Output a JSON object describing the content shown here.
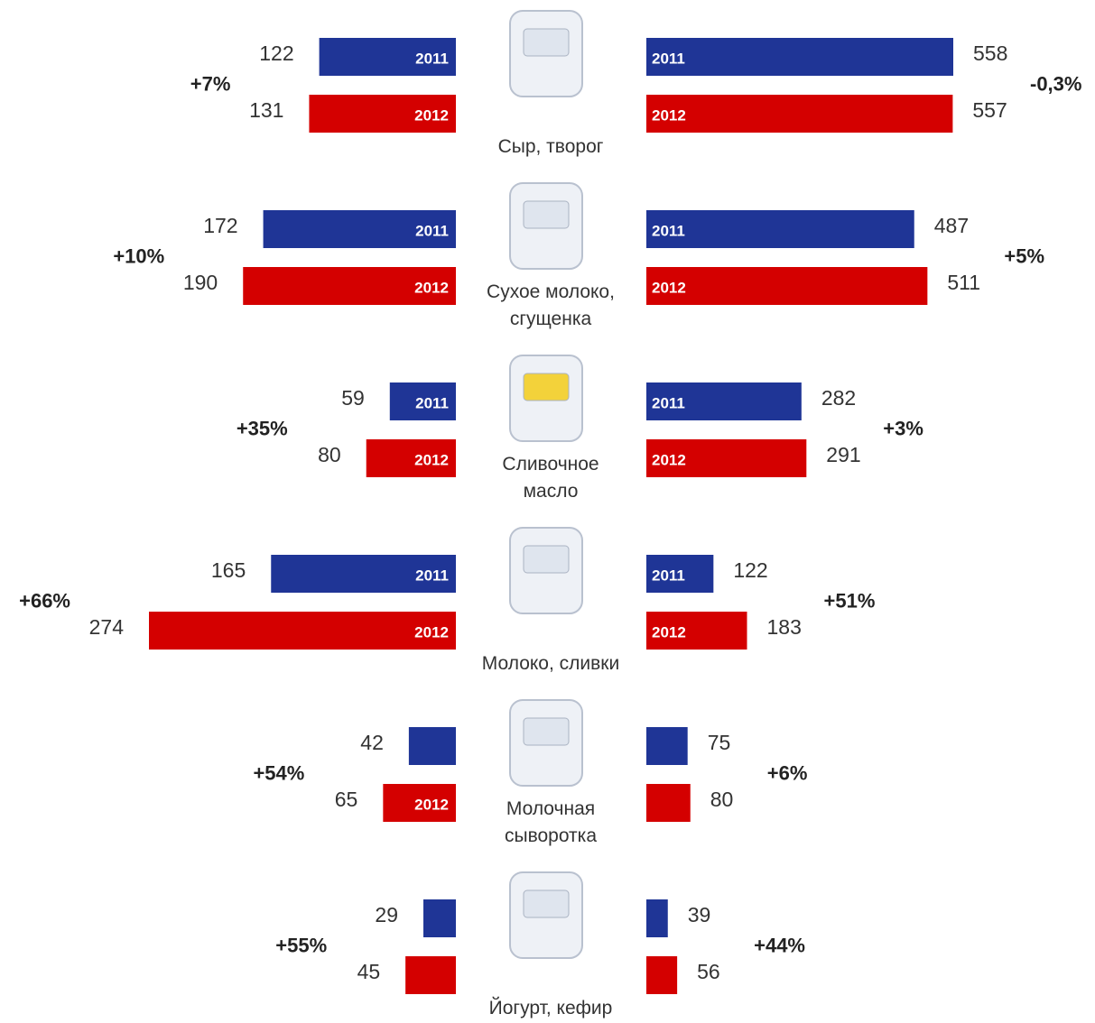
{
  "chart_data": {
    "type": "butterfly",
    "categories": [
      "Сыр, творог",
      "Сухое молоко, сгущенка",
      "Сливочное масло",
      "Молоко, сливки",
      "Молочная сыворотка",
      "Йогурт, кефир"
    ],
    "sides": [
      {
        "series": [
          {
            "name": "2011",
            "color": "#1f3596",
            "values": [
              122,
              172,
              59,
              165,
              42,
              29
            ]
          },
          {
            "name": "2012",
            "color": "#d40000",
            "values": [
              131,
              190,
              80,
              274,
              65,
              45
            ]
          }
        ],
        "changes": [
          "+7%",
          "+10%",
          "+35%",
          "+66%",
          "+54%",
          "+55%"
        ]
      },
      {
        "series": [
          {
            "name": "2011",
            "color": "#1f3596",
            "values": [
              558,
              487,
              282,
              122,
              75,
              39
            ]
          },
          {
            "name": "2012",
            "color": "#d40000",
            "values": [
              557,
              511,
              291,
              183,
              80,
              56
            ]
          }
        ],
        "changes": [
          "-0,3%",
          "+5%",
          "+3%",
          "+51%",
          "+6%",
          "+44%"
        ]
      }
    ]
  }
}
